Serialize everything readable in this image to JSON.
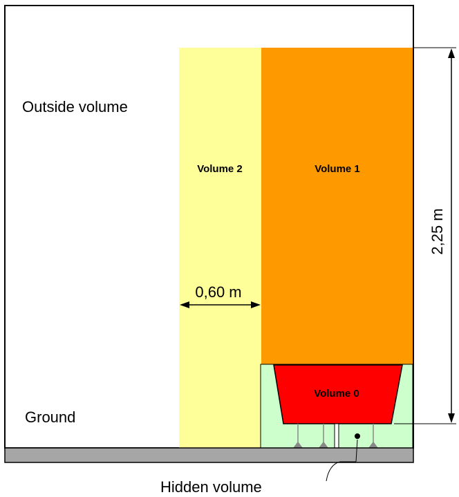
{
  "labels": {
    "outside_volume": "Outside volume",
    "volume_2": "Volume 2",
    "volume_1": "Volume 1",
    "volume_0": "Volume 0",
    "ground": "Ground",
    "hidden_volume": "Hidden volume",
    "width_dimension": "0,60 m",
    "height_dimension": "2,25 m"
  },
  "colors": {
    "volume_2": "#ffff99",
    "volume_1": "#ff9900",
    "volume_0": "#ff0000",
    "bath_enclosure": "#ccffcc",
    "floor_slab": "#a6a6a6",
    "outline": "#000000"
  }
}
